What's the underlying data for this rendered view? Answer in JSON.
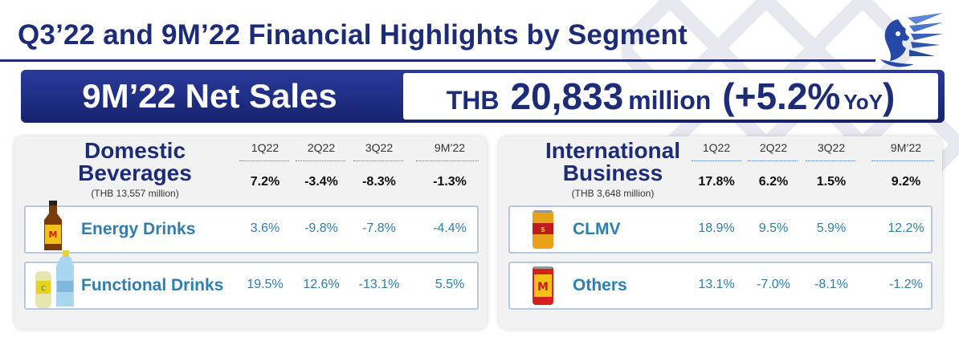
{
  "header": {
    "title": "Q3’22 and 9M’22 Financial Highlights by Segment"
  },
  "banner": {
    "label": "9M’22 Net Sales",
    "currency": "THB",
    "value": "20,833",
    "unit": "million",
    "paren_open": "(",
    "change": "+5.2%",
    "change_suffix": "YoY",
    "paren_close": ")"
  },
  "columns": [
    "1Q22",
    "2Q22",
    "3Q22",
    "9M’22"
  ],
  "domestic": {
    "title_line1": "Domestic",
    "title_line2": "Beverages",
    "subtitle": "(THB 13,557 million)",
    "totals": [
      "7.2%",
      "-3.4%",
      "-8.3%",
      "-1.3%"
    ],
    "rows": [
      {
        "name": "Energy Drinks",
        "values": [
          "3.6%",
          "-9.8%",
          "-7.8%",
          "-4.4%"
        ]
      },
      {
        "name": "Functional Drinks",
        "values": [
          "19.5%",
          "12.6%",
          "-13.1%",
          "5.5%"
        ]
      }
    ]
  },
  "international": {
    "title_line1": "International",
    "title_line2": "Business",
    "subtitle": "(THB 3,648 million)",
    "totals": [
      "17.8%",
      "6.2%",
      "1.5%",
      "9.2%"
    ],
    "rows": [
      {
        "name": "CLMV",
        "values": [
          "18.9%",
          "9.5%",
          "5.9%",
          "12.2%"
        ]
      },
      {
        "name": "Others",
        "values": [
          "13.1%",
          "-7.0%",
          "-8.1%",
          "-1.2%"
        ]
      }
    ]
  },
  "colors": {
    "navy": "#1d2c78",
    "teal_text": "#2c7fb0",
    "panel_bg": "#f2f2f2",
    "row_border": "#b7c7df"
  }
}
